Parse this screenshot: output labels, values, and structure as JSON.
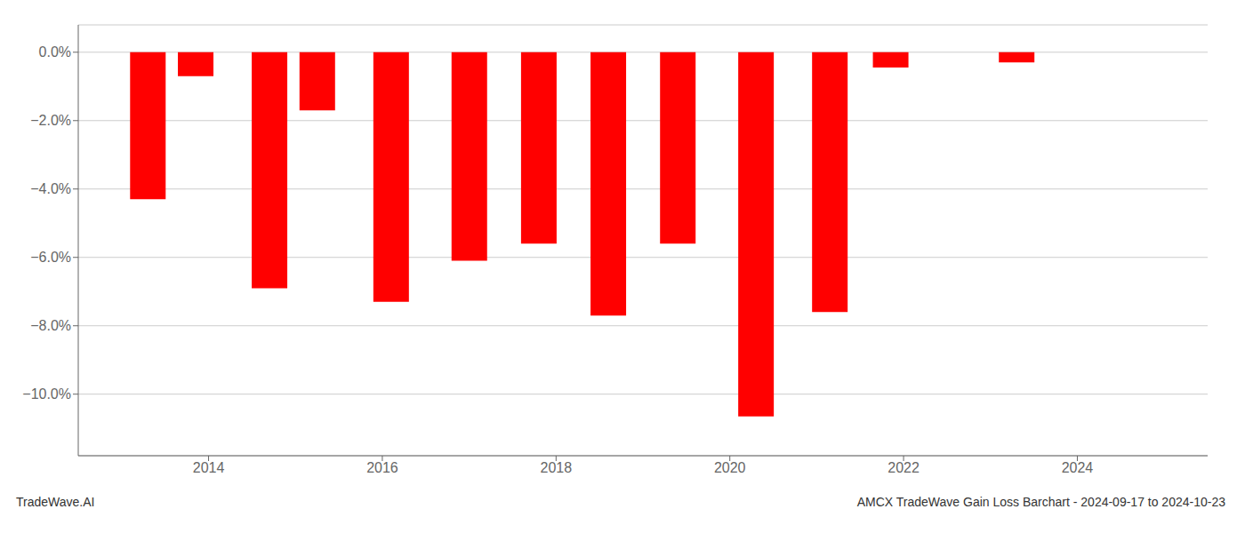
{
  "chart_data": {
    "type": "bar",
    "x": [
      2013.3,
      2013.85,
      2014.7,
      2015.25,
      2016.1,
      2017.0,
      2017.8,
      2018.6,
      2019.4,
      2020.3,
      2021.15,
      2021.85,
      2023.3,
      2023.85
    ],
    "values": [
      -4.3,
      -0.7,
      -6.9,
      -1.7,
      -7.3,
      -6.1,
      -5.6,
      -7.7,
      -5.6,
      -10.65,
      -7.6,
      -0.45,
      -0.3,
      0.0
    ],
    "color": "#ff0000",
    "xlim": [
      2012.5,
      2025.5
    ],
    "xticks": [
      2014,
      2016,
      2018,
      2020,
      2022,
      2024
    ],
    "ylim": [
      -11.8,
      0.8
    ],
    "yticks": [
      {
        "value": 0.0,
        "label": "0.0%"
      },
      {
        "value": -2.0,
        "label": "−2.0%"
      },
      {
        "value": -4.0,
        "label": "−4.0%"
      },
      {
        "value": -6.0,
        "label": "−6.0%"
      },
      {
        "value": -8.0,
        "label": "−8.0%"
      },
      {
        "value": -10.0,
        "label": "−10.0%"
      }
    ],
    "grid": true,
    "annotations": [
      "TradeWave.AI",
      "AMCX TradeWave Gain Loss Barchart - 2024-09-17 to 2024-10-23"
    ]
  }
}
